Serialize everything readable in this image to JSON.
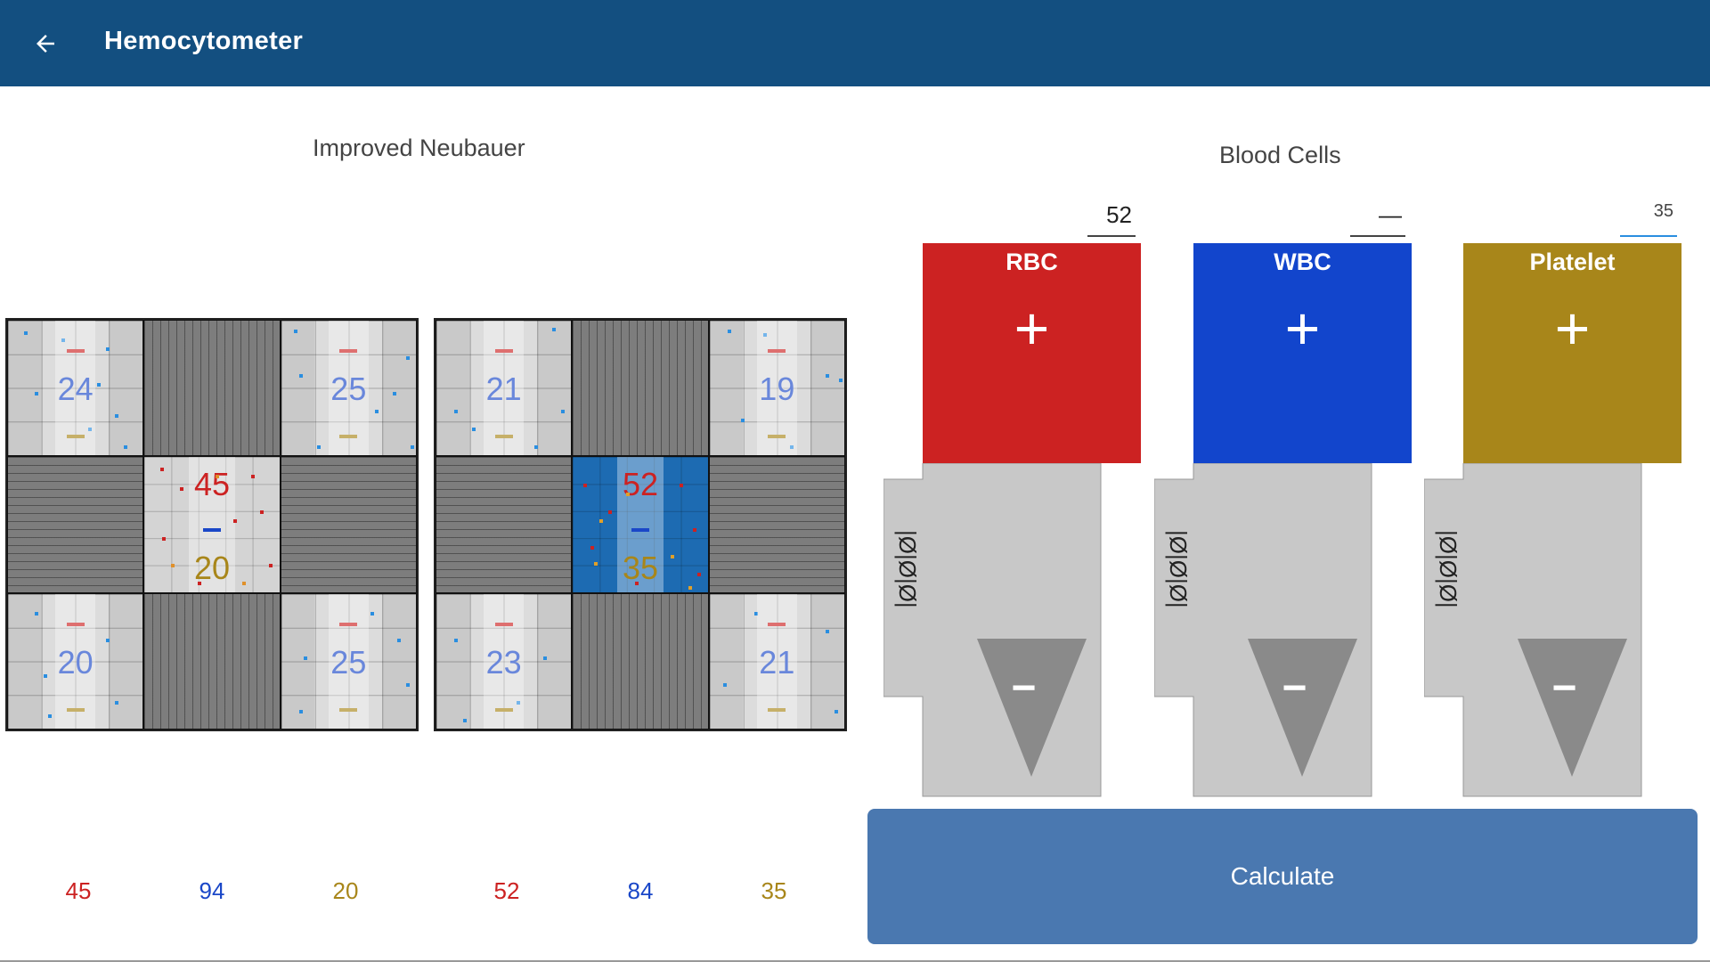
{
  "app": {
    "title": "Hemocytometer"
  },
  "left_panel": {
    "title": "Improved Neubauer",
    "chambers": [
      {
        "corners": [
          24,
          25,
          20,
          25
        ],
        "center_top": "45",
        "center_bottom": "20",
        "totals": [
          "45",
          "94",
          "20"
        ]
      },
      {
        "corners": [
          21,
          19,
          23,
          21
        ],
        "center_top": "52",
        "center_bottom": "35",
        "totals": [
          "52",
          "84",
          "35"
        ]
      }
    ]
  },
  "right_panel": {
    "title": "Blood Cells",
    "values": {
      "rbc": "52",
      "wbc": "—",
      "platelet": "35"
    },
    "buttons": [
      {
        "label": "RBC",
        "plus": "+",
        "minus": "−",
        "tally": "|Ø|Ø|Ø|"
      },
      {
        "label": "WBC",
        "plus": "+",
        "minus": "−",
        "tally": "|Ø|Ø|Ø|"
      },
      {
        "label": "Platelet",
        "plus": "+",
        "minus": "−",
        "tally": "|Ø|Ø|Ø|"
      }
    ]
  },
  "calculate_label": "Calculate",
  "colors": {
    "appbar": "#134f80",
    "rbc": "#cc2222",
    "wbc": "#1245cc",
    "platelet": "#a8861a",
    "count_blue": "#1a47c8",
    "calculate": "#4a78b0"
  }
}
